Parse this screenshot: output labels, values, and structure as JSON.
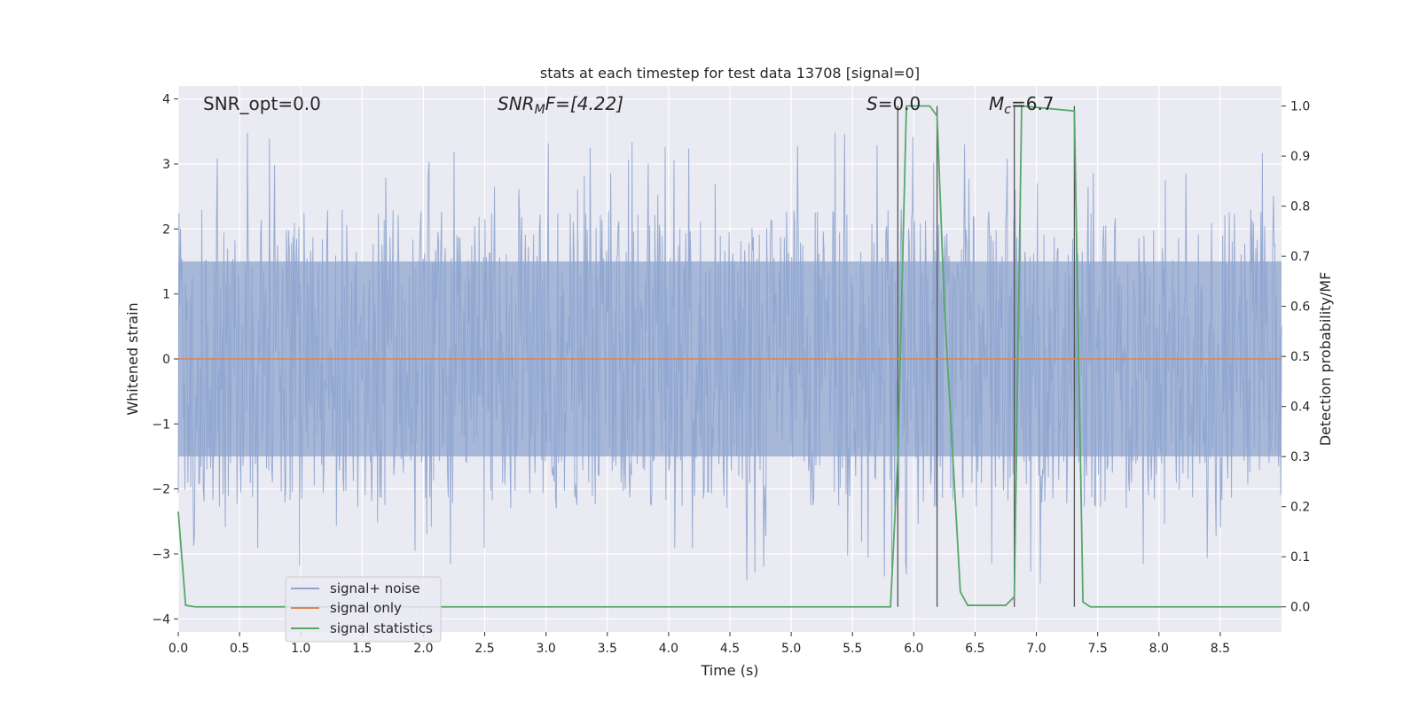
{
  "chart_data": {
    "type": "line",
    "title": "stats at each timestep for test data 13708 [signal=0]",
    "xlabel": "Time (s)",
    "ylabel_left": "Whitened strain",
    "ylabel_right": "Detection probability/MF",
    "xlim": [
      0.0,
      9.0
    ],
    "ylim_left": [
      -4.2,
      4.2
    ],
    "ylim_right": [
      -0.05,
      1.04
    ],
    "x_ticks": [
      "0.0",
      "0.5",
      "1.0",
      "1.5",
      "2.0",
      "2.5",
      "3.0",
      "3.5",
      "4.0",
      "4.5",
      "5.0",
      "5.5",
      "6.0",
      "6.5",
      "7.0",
      "7.5",
      "8.0",
      "8.5"
    ],
    "y_ticks_left": [
      "4",
      "3",
      "2",
      "1",
      "0",
      "−1",
      "−2",
      "−3",
      "−4"
    ],
    "y_ticks_right": [
      "1.0",
      "0.9",
      "0.8",
      "0.7",
      "0.6",
      "0.5",
      "0.4",
      "0.3",
      "0.2",
      "0.1",
      "0.0"
    ],
    "grid": true,
    "legend_position": "lower-left",
    "annotations": {
      "snr_opt": "SNR_opt=0.0",
      "snr_mf_name": "SNR",
      "snr_mf_sub": "M",
      "snr_mf_tail": "F=[4.22]",
      "s_name": "S",
      "s_tail": "=0.0",
      "mc_name": "M",
      "mc_sub": "c",
      "mc_tail": "=6.7"
    },
    "series": [
      {
        "name": "signal+ noise",
        "color": "#8fa5cf",
        "axis": "left",
        "description_type": "noise",
        "envelope": {
          "core_amplitude": 1.5,
          "typical_peak": 2.3,
          "max_peak": 3.8,
          "min_trough": -4.0
        }
      },
      {
        "name": "signal only",
        "color": "#dd8452",
        "axis": "left",
        "x": [
          0.0,
          9.0
        ],
        "y": [
          0.0,
          0.0
        ]
      },
      {
        "name": "signal statistics",
        "color": "#55a868",
        "axis": "right",
        "x": [
          0.0,
          0.06,
          0.14,
          5.81,
          5.87,
          5.94,
          6.13,
          6.19,
          6.25,
          6.38,
          6.44,
          6.75,
          6.82,
          6.88,
          7.31,
          7.38,
          7.44,
          9.0
        ],
        "y": [
          0.19,
          0.003,
          0.0,
          0.0,
          0.3,
          1.0,
          1.0,
          0.98,
          0.6,
          0.03,
          0.003,
          0.003,
          0.02,
          1.0,
          0.99,
          0.01,
          0.0,
          0.0
        ]
      }
    ],
    "vertical_markers": [
      5.87,
      6.19,
      6.82,
      7.31
    ],
    "marker_color": "#555555"
  }
}
